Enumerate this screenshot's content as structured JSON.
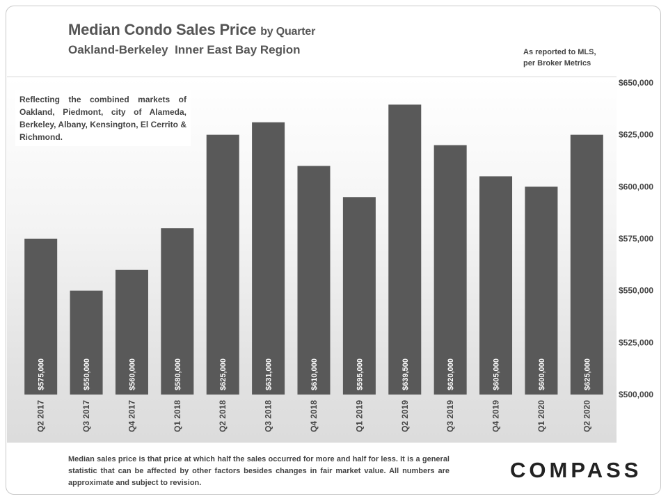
{
  "header": {
    "title_main": "Median Condo Sales Price",
    "title_suffix": "by Quarter",
    "subtitle": "Oakland-Berkeley  Inner East Bay Region",
    "source_line1": "As reported to MLS,",
    "source_line2": "per Broker Metrics"
  },
  "note": "Reflecting the combined markets of Oakland, Piedmont, city of Alameda, Berkeley, Albany, Kensington, El Cerrito & Richmond.",
  "footer": {
    "disclaimer": "Median sales price is that price at which half the sales occurred for more and half for less. It is a general statistic that can be affected by other factors besides changes in fair market value. All numbers are approximate and subject to revision.",
    "brand": "COMPASS"
  },
  "colors": {
    "bar": "#595959",
    "bar_label": "#ffffff",
    "axis_text": "#444444"
  },
  "chart_data": {
    "type": "bar",
    "title": "Median Condo Sales Price",
    "categories": [
      "Q2 2017",
      "Q3 2017",
      "Q4 2017",
      "Q1 2018",
      "Q2 2018",
      "Q3 2018",
      "Q4 2018",
      "Q1 2019",
      "Q2 2019",
      "Q3 2019",
      "Q4 2019",
      "Q1 2020",
      "Q2 2020"
    ],
    "values": [
      575000,
      550000,
      560000,
      580000,
      625000,
      631000,
      610000,
      595000,
      639500,
      620000,
      605000,
      600000,
      625000
    ],
    "data_labels": [
      "$575,000",
      "$550,000",
      "$560,000",
      "$580,000",
      "$625,000",
      "$631,000",
      "$610,000",
      "$595,000",
      "$639,500",
      "$620,000",
      "$605,000",
      "$600,000",
      "$625,000"
    ],
    "ylim": [
      500000,
      650000
    ],
    "yticks": [
      500000,
      525000,
      550000,
      575000,
      600000,
      625000,
      650000
    ],
    "ytick_labels": [
      "$500,000",
      "$525,000",
      "$550,000",
      "$575,000",
      "$600,000",
      "$625,000",
      "$650,000"
    ],
    "y_axis_side": "right",
    "grid": false,
    "legend": "none"
  }
}
